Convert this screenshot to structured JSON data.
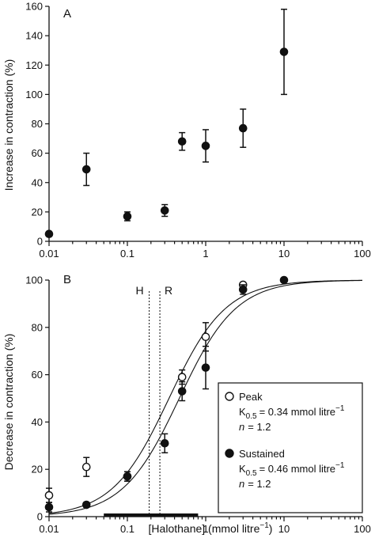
{
  "chart_data": [
    {
      "panel": "A",
      "type": "scatter",
      "ylabel": "Increase in contraction (%)",
      "xscale": "log",
      "xlim": [
        0.01,
        100
      ],
      "ylim": [
        0,
        160
      ],
      "xticks": [
        "0.01",
        "0.1",
        "1",
        "10",
        "100"
      ],
      "yticks": [
        "0",
        "20",
        "40",
        "60",
        "80",
        "100",
        "120",
        "140",
        "160"
      ],
      "series": [
        {
          "marker": "filled-circle",
          "points": [
            {
              "x": 0.01,
              "y": 5,
              "err": 0
            },
            {
              "x": 0.03,
              "y": 49,
              "err": 11
            },
            {
              "x": 0.1,
              "y": 17,
              "err": 3
            },
            {
              "x": 0.3,
              "y": 21,
              "err": 4
            },
            {
              "x": 0.5,
              "y": 68,
              "err": 6
            },
            {
              "x": 1,
              "y": 65,
              "err": 11
            },
            {
              "x": 3,
              "y": 77,
              "err": 13
            },
            {
              "x": 10,
              "y": 129,
              "err": 29
            }
          ]
        }
      ]
    },
    {
      "panel": "B",
      "type": "scatter",
      "xlabel": "[Halothane] (mmol litre⁻¹)",
      "ylabel": "Decrease in contraction (%)",
      "xscale": "log",
      "xlim": [
        0.01,
        100
      ],
      "ylim": [
        0,
        100
      ],
      "xticks": [
        "0.01",
        "0.1",
        "1",
        "10",
        "100"
      ],
      "yticks": [
        "0",
        "20",
        "40",
        "60",
        "80",
        "100"
      ],
      "vertical_lines": [
        {
          "label": "H",
          "x": 0.19
        },
        {
          "label": "R",
          "x": 0.26
        }
      ],
      "horizontal_bar": {
        "x_start": 0.05,
        "x_end": 0.8,
        "y": 0
      },
      "series": [
        {
          "name": "Peak",
          "marker": "open-circle",
          "K05": 0.34,
          "n": 1.2,
          "points": [
            {
              "x": 0.01,
              "y": 9,
              "err": 3
            },
            {
              "x": 0.03,
              "y": 21,
              "err": 4
            },
            {
              "x": 0.1,
              "y": 17,
              "err": 2
            },
            {
              "x": 0.5,
              "y": 59,
              "err": 3
            },
            {
              "x": 1,
              "y": 76,
              "err": 6
            },
            {
              "x": 3,
              "y": 98,
              "err": 1
            }
          ]
        },
        {
          "name": "Sustained",
          "marker": "filled-circle",
          "K05": 0.46,
          "n": 1.2,
          "points": [
            {
              "x": 0.01,
              "y": 4,
              "err": 2
            },
            {
              "x": 0.03,
              "y": 5,
              "err": 1
            },
            {
              "x": 0.1,
              "y": 17,
              "err": 2
            },
            {
              "x": 0.3,
              "y": 31,
              "err": 4
            },
            {
              "x": 0.5,
              "y": 53,
              "err": 4
            },
            {
              "x": 1,
              "y": 63,
              "err": 9
            },
            {
              "x": 3,
              "y": 96,
              "err": 2
            },
            {
              "x": 10,
              "y": 100,
              "err": 0
            }
          ]
        }
      ]
    }
  ],
  "legend": {
    "peak": {
      "label": "Peak",
      "k_text": "= 0.34 mmol litre",
      "n_text": "= 1.2"
    },
    "sustained": {
      "label": "Sustained",
      "k_text": "= 0.46 mmol litre",
      "n_text": "= 1.2"
    },
    "k_symbol": "K",
    "k_subscript": "0.5",
    "k_superscript": "−1",
    "n_symbol": "n"
  },
  "panel_letters": {
    "a": "A",
    "b": "B"
  },
  "vline_labels": {
    "h": "H",
    "r": "R"
  },
  "xlabel_b_main": "[Halothane] (mmol litre",
  "xlabel_b_sup": "−1",
  "xlabel_b_close": ")"
}
